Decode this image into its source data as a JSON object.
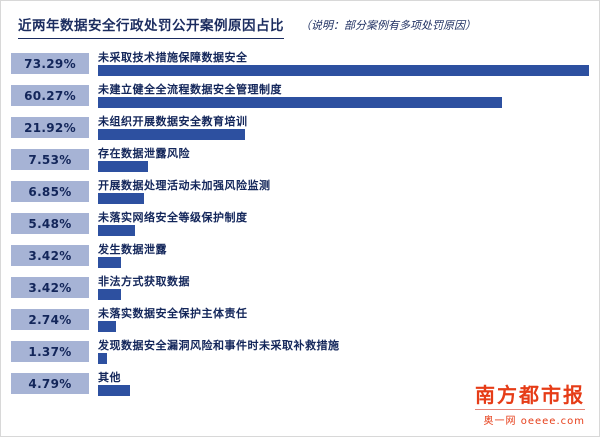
{
  "header": {
    "title": "近两年数据安全行政处罚公开案例原因占比",
    "note": "（说明：部分案例有多项处罚原因）"
  },
  "chart_data": {
    "type": "bar",
    "orientation": "horizontal",
    "title": "近两年数据安全行政处罚公开案例原因占比",
    "note": "（说明：部分案例有多项处罚原因）",
    "categories": [
      "未采取技术措施保障数据安全",
      "未建立健全全流程数据安全管理制度",
      "未组织开展数据安全教育培训",
      "存在数据泄露风险",
      "开展数据处理活动未加强风险监测",
      "未落实网络安全等级保护制度",
      "发生数据泄露",
      "非法方式获取数据",
      "未落实数据安全保护主体责任",
      "发现数据安全漏洞风险和事件时未采取补救措施",
      "其他"
    ],
    "values": [
      73.29,
      60.27,
      21.92,
      7.53,
      6.85,
      5.48,
      3.42,
      3.42,
      2.74,
      1.37,
      4.79
    ],
    "value_labels": [
      "73.29%",
      "60.27%",
      "21.92%",
      "7.53%",
      "6.85%",
      "5.48%",
      "3.42%",
      "3.42%",
      "2.74%",
      "1.37%",
      "4.79%"
    ],
    "value_suffix": "%",
    "xlim": [
      0,
      75
    ],
    "grid": false,
    "legend": false,
    "bar_color": "#2d50a0",
    "badge_bg": "#a6b3d5",
    "text_color": "#13265a"
  },
  "footer": {
    "brand": "南方都市报",
    "tagline": "奥一网 oeeee.com"
  }
}
